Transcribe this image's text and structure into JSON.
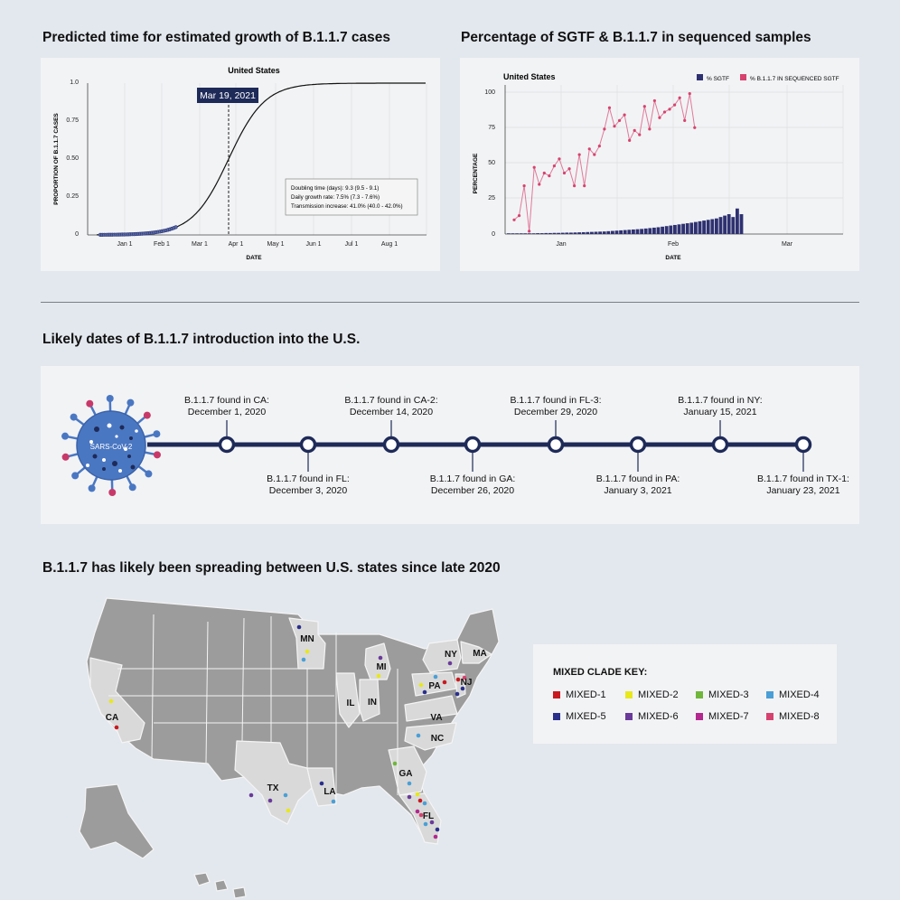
{
  "headings": {
    "growth": "Predicted time for estimated growth of B.1.1.7 cases",
    "sgtf": "Percentage of SGTF & B.1.1.7 in sequenced samples",
    "dates": "Likely dates of B.1.1.7 introduction into the U.S.",
    "spread": "B.1.1.7 has likely been spreading between U.S. states since late 2020"
  },
  "chart_data": [
    {
      "type": "line",
      "title": "United States",
      "xlabel": "DATE",
      "ylabel": "PROPORTION OF B.1.1.7 CASES",
      "ylim": [
        0,
        1
      ],
      "yticks": [
        "0",
        "0.25",
        "0.50",
        "0.75",
        "1.0"
      ],
      "xticks": [
        "Jan 1",
        "Feb 1",
        "Mar 1",
        "Apr 1",
        "May 1",
        "Jun 1",
        "Jul 1",
        "Aug 1"
      ],
      "marker_label": "Mar 19, 2021",
      "stats": [
        "Doubling time (days): 9.3 (9.5 - 9.1)",
        "Daily growth rate: 7.5% (7.3 - 7.6%)",
        "Transmission increase: 41.0% (40.0 - 42.0%)"
      ]
    },
    {
      "type": "bar",
      "title": "United States",
      "xlabel": "DATE",
      "ylabel": "PERCENTAGE",
      "ylim": [
        0,
        100
      ],
      "yticks": [
        "0",
        "25",
        "50",
        "75",
        "100"
      ],
      "xticks": [
        "Jan",
        "Feb",
        "Mar"
      ],
      "legend": [
        "% SGTF",
        "% B.1.1.7 IN SEQUENCED SGTF"
      ],
      "series": [
        {
          "name": "% SGTF",
          "values": [
            0.5,
            0.5,
            0.5,
            0.5,
            0.5,
            0.5,
            0.5,
            0.6,
            0.6,
            0.7,
            0.7,
            0.8,
            0.8,
            0.9,
            1,
            1,
            1.1,
            1.2,
            1.3,
            1.4,
            1.5,
            1.6,
            1.7,
            1.8,
            2,
            2.2,
            2.4,
            2.6,
            2.8,
            3,
            3.2,
            3.4,
            3.6,
            3.9,
            4.2,
            4.5,
            4.8,
            5.2,
            5.6,
            6,
            6.4,
            6.8,
            7.2,
            7.6,
            8,
            8.5,
            9,
            9.5,
            10,
            10.5,
            11,
            12,
            13,
            14,
            12,
            18,
            14
          ]
        },
        {
          "name": "% B.1.1.7 IN SEQUENCED SGTF",
          "values": [
            10,
            13,
            34,
            2,
            47,
            35,
            43,
            41,
            48,
            53,
            43,
            46,
            34,
            56,
            34,
            60,
            56,
            62,
            74,
            89,
            76,
            80,
            84,
            66,
            73,
            70,
            90,
            74,
            94,
            82,
            86,
            88,
            91,
            96,
            80,
            99,
            75
          ]
        }
      ]
    }
  ],
  "timeline": {
    "virus_label": "SARS-CoV-2",
    "events": [
      {
        "line1": "B.1.1.7 found in CA:",
        "line2": "December 1, 2020"
      },
      {
        "line1": "B.1.1.7 found in FL:",
        "line2": "December 3, 2020"
      },
      {
        "line1": "B.1.1.7 found in CA-2:",
        "line2": "December 14, 2020"
      },
      {
        "line1": "B.1.1.7 found in GA:",
        "line2": "December 26, 2020"
      },
      {
        "line1": "B.1.1.7 found in FL-3:",
        "line2": "December 29, 2020"
      },
      {
        "line1": "B.1.1.7 found in PA:",
        "line2": "January 3, 2021"
      },
      {
        "line1": "B.1.1.7 found in NY:",
        "line2": "January 15, 2021"
      },
      {
        "line1": "B.1.1.7 found in TX-1:",
        "line2": "January 23, 2021"
      }
    ]
  },
  "map": {
    "state_labels": [
      "CA",
      "MN",
      "MI",
      "IL",
      "IN",
      "NY",
      "MA",
      "PA",
      "NJ",
      "VA",
      "NC",
      "GA",
      "TX",
      "LA",
      "FL"
    ]
  },
  "key": {
    "title": "MIXED CLADE KEY:",
    "items": [
      {
        "label": "MIXED-1",
        "color": "#c8191f"
      },
      {
        "label": "MIXED-2",
        "color": "#e8e81a"
      },
      {
        "label": "MIXED-3",
        "color": "#6fb63a"
      },
      {
        "label": "MIXED-4",
        "color": "#4a9fd6"
      },
      {
        "label": "MIXED-5",
        "color": "#2a2e8c"
      },
      {
        "label": "MIXED-6",
        "color": "#6a3a9a"
      },
      {
        "label": "MIXED-7",
        "color": "#b3278e"
      },
      {
        "label": "MIXED-8",
        "color": "#d6426f"
      }
    ]
  },
  "colors": {
    "navy": "#1e2a58",
    "pink": "#d6436e",
    "virus": "#4a77c2",
    "state_gray": "#9c9c9c",
    "state_highlight": "#d9d9d9"
  }
}
